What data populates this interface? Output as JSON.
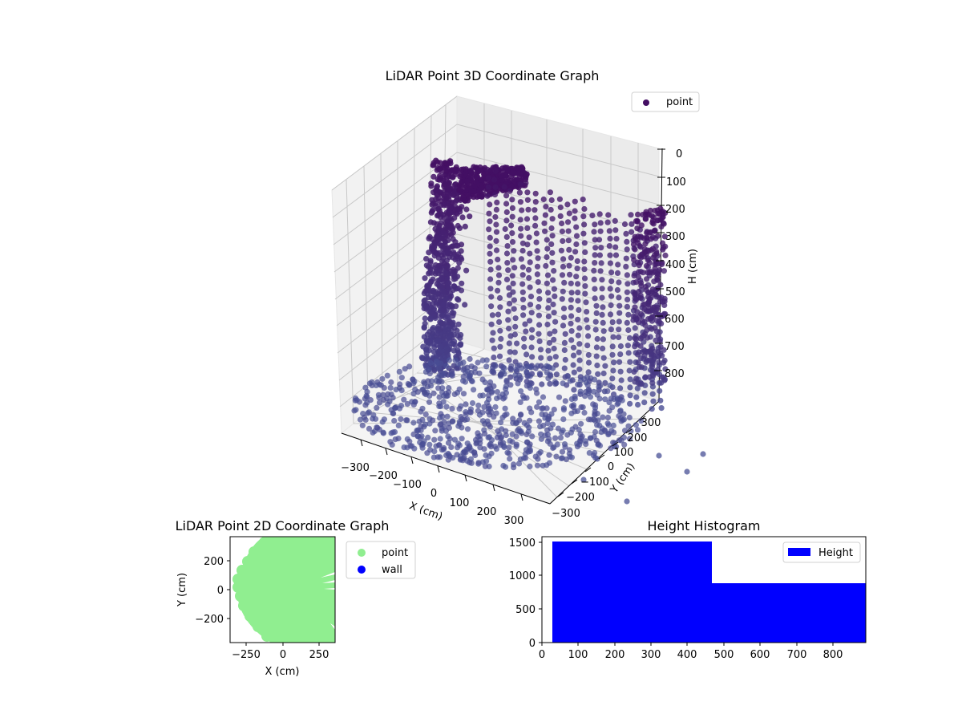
{
  "chart_data": [
    {
      "type": "scatter3d",
      "title": "LiDAR Point 3D Coordinate Graph",
      "xlabel": "X (cm)",
      "ylabel": "Y (cm)",
      "zlabel": "H (cm)",
      "x_ticks": [
        "−300",
        "−200",
        "−100",
        "0",
        "100",
        "200",
        "300"
      ],
      "y_ticks": [
        "−300",
        "−200",
        "−100",
        "0",
        "100",
        "200",
        "300"
      ],
      "z_ticks": [
        "0",
        "100",
        "200",
        "300",
        "400",
        "500",
        "600",
        "700",
        "800"
      ],
      "z_inverted": true,
      "legend": [
        {
          "label": "point",
          "color": "#440f63"
        }
      ],
      "legend_position": "upper right",
      "colormap": "viridis (dark purple top → slate blue bottom)",
      "grid": true
    },
    {
      "type": "scatter",
      "title": "LiDAR Point 2D Coordinate Graph",
      "xlabel": "X (cm)",
      "ylabel": "Y (cm)",
      "x_ticks": [
        "−250",
        "0",
        "250"
      ],
      "y_ticks": [
        "−200",
        "0",
        "200"
      ],
      "xlim": [
        -360,
        360
      ],
      "ylim": [
        -360,
        360
      ],
      "legend": [
        {
          "label": "point",
          "color": "#90ee90"
        },
        {
          "label": "wall",
          "color": "#0000ff"
        }
      ],
      "legend_position": "outside right"
    },
    {
      "type": "histogram",
      "title": "Height Histogram",
      "bins": [
        {
          "start": 30,
          "end": 470,
          "count": 1500
        },
        {
          "start": 470,
          "end": 890,
          "count": 880
        }
      ],
      "x_ticks": [
        "0",
        "100",
        "200",
        "300",
        "400",
        "500",
        "600",
        "700",
        "800"
      ],
      "y_ticks": [
        "0",
        "500",
        "1000",
        "1500"
      ],
      "xlim": [
        0,
        890
      ],
      "ylim": [
        0,
        1560
      ],
      "legend": [
        {
          "label": "Height",
          "color": "#0000ff"
        }
      ],
      "legend_position": "upper right"
    }
  ],
  "plot3d": {
    "title": "LiDAR Point 3D Coordinate Graph",
    "legend_label": "point",
    "xlabel": "X (cm)",
    "ylabel": "Y (cm)",
    "zlabel": "H (cm)",
    "x_ticks": [
      "−300",
      "−200",
      "−100",
      "0",
      "100",
      "200",
      "300"
    ],
    "y_ticks": [
      "−300",
      "−200",
      "−100",
      "0",
      "100",
      "200",
      "300"
    ],
    "z_ticks": [
      "0",
      "100",
      "200",
      "300",
      "400",
      "500",
      "600",
      "700",
      "800"
    ]
  },
  "plot2d": {
    "title": "LiDAR Point 2D Coordinate Graph",
    "xlabel": "X (cm)",
    "ylabel": "Y (cm)",
    "x_ticks": [
      "−250",
      "0",
      "250"
    ],
    "y_ticks": [
      "200",
      "0",
      "−200"
    ],
    "legend": [
      "point",
      "wall"
    ]
  },
  "hist": {
    "title": "Height Histogram",
    "legend_label": "Height",
    "x_ticks": [
      "0",
      "100",
      "200",
      "300",
      "400",
      "500",
      "600",
      "700",
      "800"
    ],
    "y_ticks": [
      "1500",
      "1000",
      "500",
      "0"
    ]
  }
}
